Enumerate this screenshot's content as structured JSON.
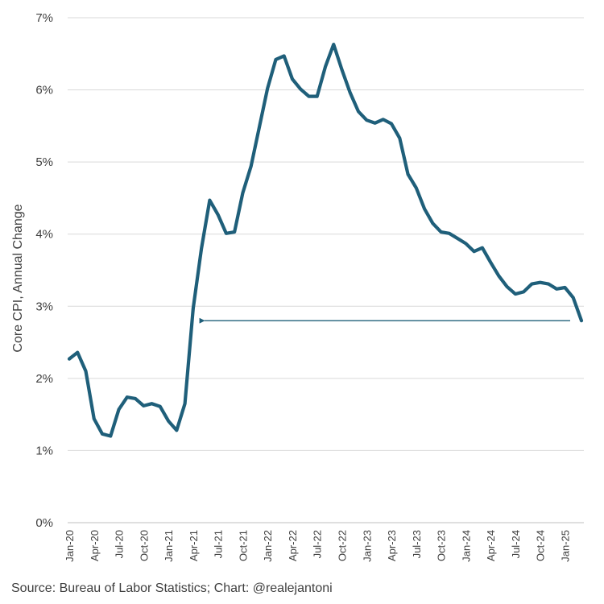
{
  "chart_data": {
    "type": "line",
    "ylabel": "Core CPI, Annual Change",
    "ylim": [
      0,
      7
    ],
    "ytick_labels": [
      "0%",
      "1%",
      "2%",
      "3%",
      "4%",
      "5%",
      "6%",
      "7%"
    ],
    "xtick_labels": [
      "Jan-20",
      "Apr-20",
      "Jul-20",
      "Oct-20",
      "Jan-21",
      "Apr-21",
      "Jul-21",
      "Oct-21",
      "Jan-22",
      "Apr-22",
      "Jul-22",
      "Oct-22",
      "Jan-23",
      "Apr-23",
      "Jul-23",
      "Oct-23",
      "Jan-24",
      "Apr-24",
      "Jul-24",
      "Oct-24",
      "Jan-25"
    ],
    "grid": "horizontal",
    "line_color": "#1f5f7a",
    "series": [
      {
        "x": [
          "Jan-20",
          "Feb-20",
          "Mar-20",
          "Apr-20",
          "May-20",
          "Jun-20",
          "Jul-20",
          "Aug-20",
          "Sep-20",
          "Oct-20",
          "Nov-20",
          "Dec-20",
          "Jan-21",
          "Feb-21",
          "Mar-21",
          "Apr-21",
          "May-21",
          "Jun-21",
          "Jul-21",
          "Aug-21",
          "Sep-21",
          "Oct-21",
          "Nov-21",
          "Dec-21",
          "Jan-22",
          "Feb-22",
          "Mar-22",
          "Apr-22",
          "May-22",
          "Jun-22",
          "Jul-22",
          "Aug-22",
          "Sep-22",
          "Oct-22",
          "Nov-22",
          "Dec-22",
          "Jan-23",
          "Feb-23",
          "Mar-23",
          "Apr-23",
          "May-23",
          "Jun-23",
          "Jul-23",
          "Aug-23",
          "Sep-23",
          "Oct-23",
          "Nov-23",
          "Dec-23",
          "Jan-24",
          "Feb-24",
          "Mar-24",
          "Apr-24",
          "May-24",
          "Jun-24",
          "Jul-24",
          "Aug-24",
          "Sep-24",
          "Oct-24",
          "Nov-24",
          "Dec-24",
          "Jan-25",
          "Feb-25",
          "Mar-25"
        ],
        "values": [
          2.27,
          2.36,
          2.1,
          1.44,
          1.23,
          1.2,
          1.57,
          1.74,
          1.72,
          1.62,
          1.65,
          1.61,
          1.41,
          1.28,
          1.65,
          2.97,
          3.8,
          4.47,
          4.27,
          4.01,
          4.03,
          4.57,
          4.94,
          5.48,
          6.02,
          6.42,
          6.47,
          6.15,
          6.01,
          5.91,
          5.91,
          6.32,
          6.63,
          6.28,
          5.96,
          5.7,
          5.58,
          5.54,
          5.59,
          5.53,
          5.33,
          4.83,
          4.64,
          4.35,
          4.15,
          4.03,
          4.01,
          3.94,
          3.87,
          3.76,
          3.81,
          3.61,
          3.42,
          3.27,
          3.17,
          3.2,
          3.31,
          3.33,
          3.31,
          3.24,
          3.26,
          3.12,
          2.8
        ]
      }
    ],
    "annotation": {
      "type": "arrow",
      "level": 2.8,
      "from": "Mar-25",
      "to": "Apr-21",
      "color": "#1f5f7a"
    }
  },
  "source": "Source: Bureau of Labor Statistics; Chart: @realejantoni"
}
